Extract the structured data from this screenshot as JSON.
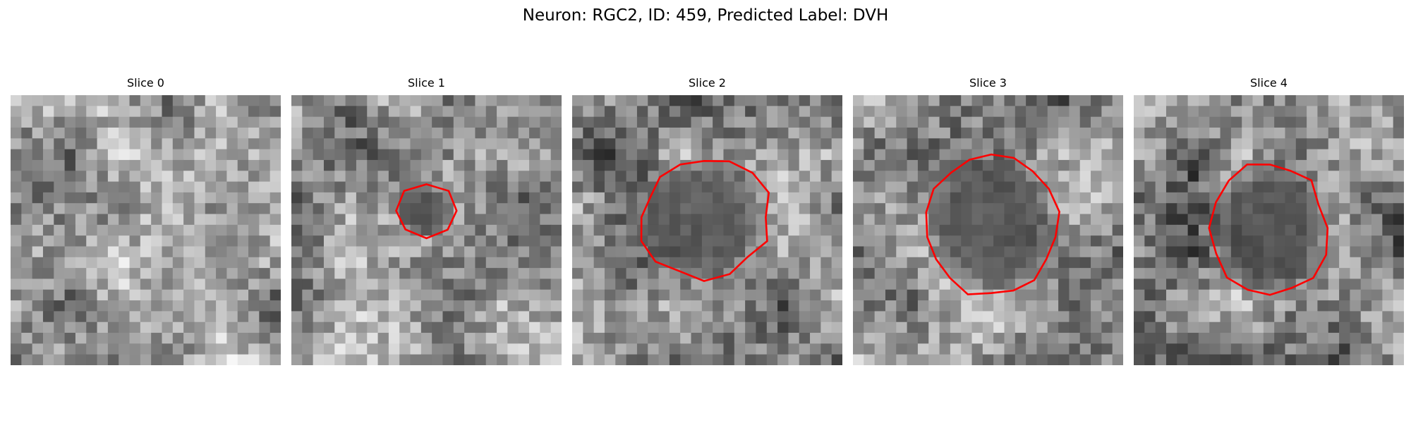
{
  "figure": {
    "title": "Neuron: RGC2, ID: 459, Predicted Label: DVH",
    "contour_color": "#ff0000"
  },
  "panels": [
    {
      "title": "Slice 0",
      "has_contour": false,
      "outline": "none",
      "base_brightness": 0.62
    },
    {
      "title": "Slice 1",
      "has_contour": true,
      "outline": "small",
      "base_brightness": 0.58
    },
    {
      "title": "Slice 2",
      "has_contour": true,
      "outline": "medium",
      "base_brightness": 0.55
    },
    {
      "title": "Slice 3",
      "has_contour": true,
      "outline": "large",
      "base_brightness": 0.56
    },
    {
      "title": "Slice 4",
      "has_contour": true,
      "outline": "medium",
      "base_brightness": 0.52
    }
  ]
}
